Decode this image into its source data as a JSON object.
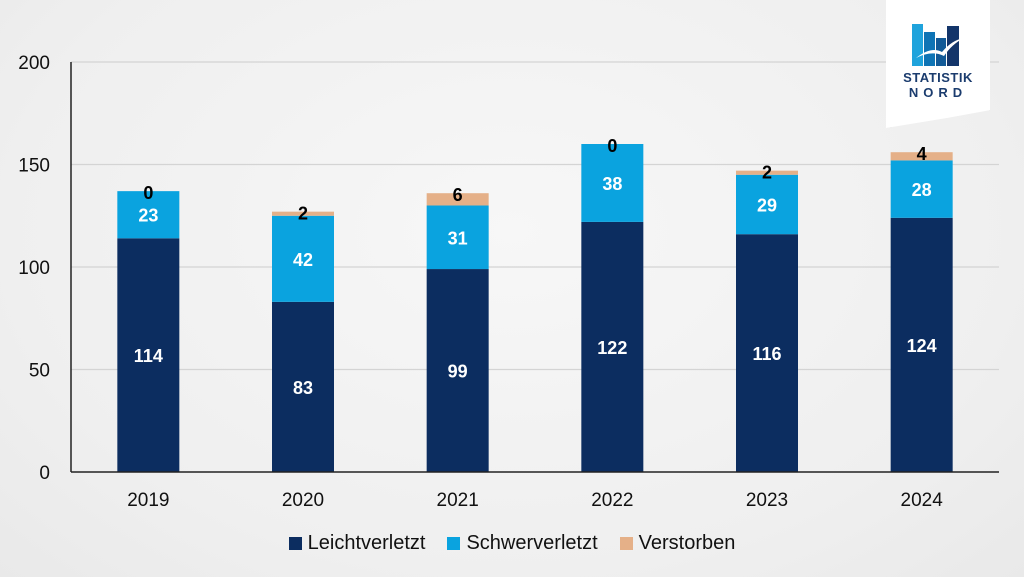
{
  "chart_data": {
    "type": "bar",
    "stacked": true,
    "title": "",
    "xlabel": "",
    "ylabel": "",
    "categories": [
      "2019",
      "2020",
      "2021",
      "2022",
      "2023",
      "2024"
    ],
    "series": [
      {
        "name": "Leichtverletzt",
        "color": "#0c2d60",
        "label_color": "#ffffff",
        "values": [
          114,
          83,
          99,
          122,
          116,
          124
        ]
      },
      {
        "name": "Schwerverletzt",
        "color": "#0aa3df",
        "label_color": "#ffffff",
        "values": [
          23,
          42,
          31,
          38,
          29,
          28
        ]
      },
      {
        "name": "Verstorben",
        "color": "#e5b088",
        "label_color": "#000000",
        "values": [
          0,
          2,
          6,
          0,
          2,
          4
        ]
      }
    ],
    "ylim": [
      0,
      200
    ],
    "yticks": [
      0,
      50,
      100,
      150,
      200
    ],
    "grid": true,
    "legend_position": "bottom"
  },
  "logo": {
    "line1": "STATISTIK",
    "line2": "NORD"
  }
}
